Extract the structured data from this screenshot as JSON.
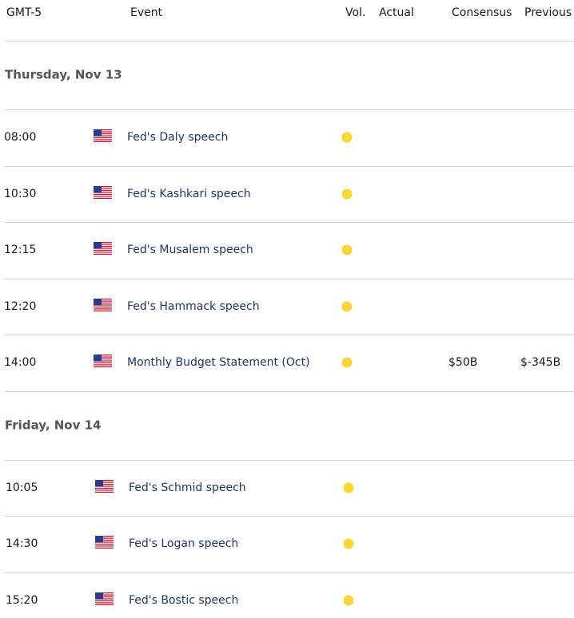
{
  "header": {
    "time_zone": "GMT-5",
    "event": "Event",
    "volatility": "Vol.",
    "actual": "Actual",
    "consensus": "Consensus",
    "previous": "Previous"
  },
  "sections": [
    {
      "date": "Thursday, Nov 13",
      "rows": [
        {
          "time": "08:00",
          "event": "Fed's Daly speech"
        },
        {
          "time": "10:30",
          "event": "Fed's Kashkari speech"
        },
        {
          "time": "12:15",
          "event": "Fed's Musalem speech"
        },
        {
          "time": "12:20",
          "event": "Fed's Hammack speech"
        },
        {
          "time": "14:00",
          "event": "Monthly Budget Statement (Oct)",
          "consensus": "$50B",
          "previous": "$-345B"
        }
      ]
    },
    {
      "date": "Friday, Nov 14",
      "rows": [
        {
          "time": "10:05",
          "event": "Fed's Schmid speech"
        },
        {
          "time": "14:30",
          "event": "Fed's Logan speech"
        },
        {
          "time": "15:20",
          "event": "Fed's Bostic speech"
        }
      ]
    }
  ]
}
